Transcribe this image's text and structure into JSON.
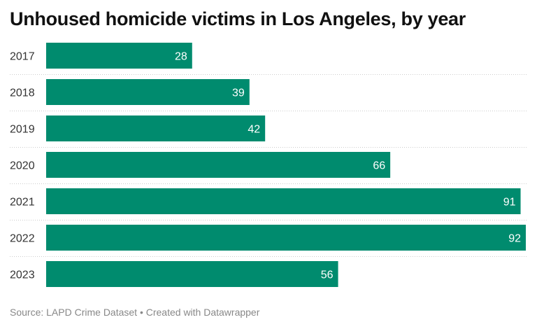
{
  "chart_data": {
    "type": "bar",
    "orientation": "horizontal",
    "title": "Unhoused homicide victims in Los Angeles, by year",
    "categories": [
      "2017",
      "2018",
      "2019",
      "2020",
      "2021",
      "2022",
      "2023"
    ],
    "values": [
      28,
      39,
      42,
      66,
      91,
      92,
      56
    ],
    "xlim": [
      0,
      92
    ],
    "bar_color": "#008b6e",
    "value_labels": "inside-end",
    "grid": false
  },
  "footer": {
    "source": "Source: LAPD Crime Dataset • Created with Datawrapper"
  }
}
